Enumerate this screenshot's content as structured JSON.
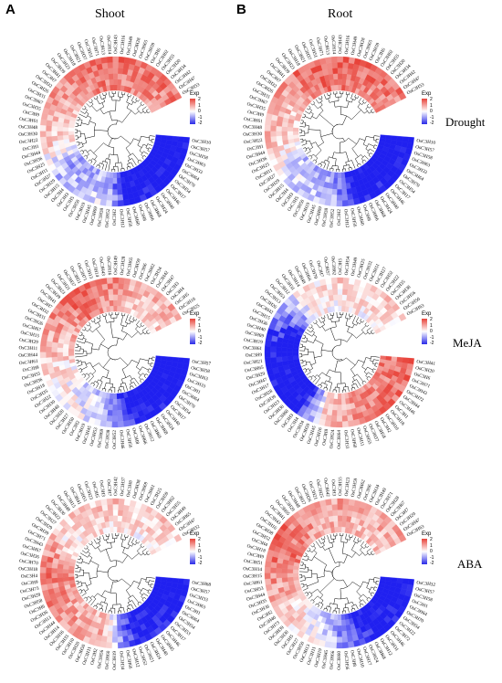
{
  "labels": {
    "panel_a": "A",
    "panel_b": "B",
    "shoot": "Shoot",
    "root": "Root",
    "drought": "Drought",
    "meja": "MeJA",
    "aba": "ABA"
  },
  "legend": {
    "title": "Exp",
    "ticks": [
      "2",
      "1",
      "0",
      "-1",
      "-2"
    ]
  },
  "colors": {
    "high": "#e8433a",
    "mid": "#ffffff",
    "low": "#2020f0"
  },
  "heatmaps": [
    {
      "id": "shoot-drought",
      "genes": [
        "OsC3H10",
        "OsC3H57",
        "OsC3H58",
        "OsC3H63",
        "OsC3H33",
        "OsC3H64",
        "OsC3H70",
        "OsC3H54",
        "OsC3H17",
        "OsC3H46",
        "OsC3H40",
        "OsC3H24",
        "OsC3H68",
        "OsC3H66",
        "OsC3H8",
        "OsC3H60",
        "OsC3H56",
        "OsC3H12",
        "OsC3H2",
        "OsC3H52",
        "OsC3H38",
        "OsC3H69",
        "OsC3H45",
        "OsC3H19",
        "OsC3H50",
        "OsC3H5",
        "OsC3H3",
        "OsC3H4",
        "OsC3H15",
        "OsC3H29",
        "OsC3H27",
        "OsC3H11",
        "OsC3H25",
        "OsC3H36",
        "OsC3H44",
        "OsC3H1",
        "OsC3H22",
        "OsC3H30",
        "OsC3H48",
        "OsC3H61",
        "OsC3H9",
        "OsC3H35",
        "OsC3H67",
        "OsC3H31",
        "OsC3H26",
        "OsC3H32",
        "OsC3H7",
        "OsC3H41",
        "OsC3H39",
        "OsC3H23",
        "OsC3H18",
        "OsC3H21",
        "OsC3H37",
        "OsC3H51",
        "OsC3H71",
        "OsC3H13",
        "OsC3H14",
        "OsC3H43",
        "OsC3H16",
        "OsC3H49",
        "OsC3H28",
        "OsC3H65",
        "OsC3H59",
        "OsC3H6",
        "OsC3H62",
        "OsC3H55",
        "OsC3H20",
        "OsC3H34",
        "OsC3H42",
        "OsC3H47",
        "OsC3H53"
      ],
      "profile": [
        [
          0,
          -2
        ],
        [
          0.22,
          -1.8
        ],
        [
          0.28,
          -0.4
        ],
        [
          0.42,
          -0.6
        ],
        [
          0.5,
          0.3
        ],
        [
          0.6,
          0.6
        ],
        [
          0.75,
          1.2
        ],
        [
          1,
          1.0
        ]
      ]
    },
    {
      "id": "root-drought",
      "genes": [
        "OsC3H10",
        "OsC3H57",
        "OsC3H58",
        "OsC3H63",
        "OsC3H33",
        "OsC3H64",
        "OsC3H70",
        "OsC3H54",
        "OsC3H17",
        "OsC3H46",
        "OsC3H40",
        "OsC3H24",
        "OsC3H68",
        "OsC3H66",
        "OsC3H8",
        "OsC3H60",
        "OsC3H56",
        "OsC3H12",
        "OsC3H2",
        "OsC3H52",
        "OsC3H38",
        "OsC3H69",
        "OsC3H45",
        "OsC3H19",
        "OsC3H50",
        "OsC3H5",
        "OsC3H3",
        "OsC3H4",
        "OsC3H15",
        "OsC3H29",
        "OsC3H27",
        "OsC3H11",
        "OsC3H25",
        "OsC3H36",
        "OsC3H44",
        "OsC3H1",
        "OsC3H22",
        "OsC3H30",
        "OsC3H48",
        "OsC3H61",
        "OsC3H9",
        "OsC3H35",
        "OsC3H67",
        "OsC3H31",
        "OsC3H26",
        "OsC3H32",
        "OsC3H7",
        "OsC3H41",
        "OsC3H39",
        "OsC3H23",
        "OsC3H18",
        "OsC3H21",
        "OsC3H37",
        "OsC3H51",
        "OsC3H71",
        "OsC3H13",
        "OsC3H14",
        "OsC3H43",
        "OsC3H16",
        "OsC3H49",
        "OsC3H28",
        "OsC3H65",
        "OsC3H59",
        "OsC3H6",
        "OsC3H62",
        "OsC3H55",
        "OsC3H20",
        "OsC3H34",
        "OsC3H42",
        "OsC3H47",
        "OsC3H53"
      ],
      "profile": [
        [
          0,
          -2
        ],
        [
          0.22,
          -1.7
        ],
        [
          0.28,
          -0.5
        ],
        [
          0.42,
          -0.3
        ],
        [
          0.5,
          0.4
        ],
        [
          0.6,
          0.5
        ],
        [
          0.75,
          1.3
        ],
        [
          1,
          1.0
        ]
      ]
    },
    {
      "id": "shoot-meja",
      "genes": [
        "OsC3H57",
        "OsC3H58",
        "OsC3H63",
        "OsC3H33",
        "OsC3H1",
        "OsC3H64",
        "OsC3H70",
        "OsC3H54",
        "OsC3H17",
        "OsC3H40",
        "OsC3H24",
        "OsC3H68",
        "OsC3H60",
        "OsC3H12",
        "OsC3H66",
        "OsC3H8",
        "OsC3H56",
        "OsC3H46",
        "OsC3H52",
        "OsC3H38",
        "OsC3H69",
        "OsC3H53",
        "OsC3H45",
        "OsC3H19",
        "OsC3H2",
        "OsC3H50",
        "OsC3H27",
        "OsC3H20",
        "OsC3H48",
        "OsC3H30",
        "OsC3H22",
        "OsC3H35",
        "OsC3H18",
        "OsC3H36",
        "OsC3H55",
        "OsC3H9",
        "OsC3H61",
        "OsC3H44",
        "OsC3H11",
        "OsC3H29",
        "OsC3H15",
        "OsC3H67",
        "OsC3H26",
        "OsC3H31",
        "OsC3H32",
        "OsC3H7",
        "OsC3H41",
        "OsC3H39",
        "OsC3H23",
        "OsC3H21",
        "OsC3H37",
        "OsC3H51",
        "OsC3H71",
        "OsC3H13",
        "OsC3H14",
        "OsC3H43",
        "OsC3H16",
        "OsC3H49",
        "OsC3H28",
        "OsC3H65",
        "OsC3H59",
        "OsC3H6",
        "OsC3H62",
        "OsC3H34",
        "OsC3H42",
        "OsC3H47",
        "OsC3H3",
        "OsC3H4",
        "OsC3H5",
        "OsC3H10",
        "OsC3H25"
      ],
      "profile": [
        [
          0,
          -2
        ],
        [
          0.2,
          -1.8
        ],
        [
          0.3,
          -0.4
        ],
        [
          0.4,
          0.0
        ],
        [
          0.55,
          0.5
        ],
        [
          0.72,
          1.3
        ],
        [
          0.85,
          0.6
        ],
        [
          1,
          0.5
        ]
      ]
    },
    {
      "id": "root-meja",
      "genes": [
        "OsC3H41",
        "OsC3H20",
        "OsC3H6",
        "OsC3H71",
        "OsC3H43",
        "OsC3H72",
        "OsC3H44",
        "OsC3H46",
        "OsC3H1",
        "OsC3H18",
        "OsC3H10",
        "OsC3H2",
        "OsC3H58",
        "OsC3H37",
        "OsC3H55",
        "OsC3H11",
        "OsC3H60",
        "OsC3H33",
        "OsC3H64",
        "OsC3H24",
        "OsC3H8",
        "OsC3H16",
        "OsC3H45",
        "OsC3H59",
        "OsC3H34",
        "OsC3H4",
        "OsC3H3",
        "OsC3H68",
        "OsC3H30",
        "OsC3H23",
        "OsC3H39",
        "OsC3H28",
        "OsC3H17",
        "OsC3H47",
        "OsC3H29",
        "OsC3H65",
        "OsC3H21",
        "OsC3H9",
        "OsC3H61",
        "OsC3H19",
        "OsC3H69",
        "OsC3H40",
        "OsC3H36",
        "OsC3H15",
        "OsC3H42",
        "OsC3H26",
        "OsC3H13",
        "OsC3H53",
        "OsC3H12",
        "OsC3H31",
        "OsC3H14",
        "OsC3H48",
        "OsC3H66",
        "OsC3H70",
        "OsC3H7",
        "OsC3H57",
        "OsC3H62",
        "OsC3H5",
        "OsC3H54",
        "OsC3H49",
        "OsC3H25",
        "OsC3H32",
        "OsC3H51",
        "OsC3H27",
        "OsC3H52",
        "OsC3H22",
        "OsC3H35",
        "OsC3H38",
        "OsC3H56",
        "OsC3H50",
        "OsC3H63"
      ],
      "profile": [
        [
          0,
          1.2
        ],
        [
          0.2,
          1.0
        ],
        [
          0.3,
          0.3
        ],
        [
          0.38,
          -1.9
        ],
        [
          0.55,
          -1.8
        ],
        [
          0.62,
          -1.2
        ],
        [
          0.72,
          0.1
        ],
        [
          0.85,
          0.3
        ],
        [
          1,
          0.2
        ]
      ]
    },
    {
      "id": "shoot-aba",
      "genes": [
        "OsC3H68",
        "OsC3H57",
        "OsC3H33",
        "OsC3H63",
        "OsC3H1",
        "OsC3H64",
        "OsC3H54",
        "OsC3H53",
        "OsC3H17",
        "OsC3H46",
        "OsC3H45",
        "OsC3H40",
        "OsC3H24",
        "OsC3H21",
        "OsC3H52",
        "OsC3H12",
        "OsC3H66",
        "OsC3H34",
        "OsC3H19",
        "OsC3H60",
        "OsC3H56",
        "OsC3H2",
        "OsC3H11",
        "OsC3H50",
        "OsC3H20",
        "OsC3H10",
        "OsC3H35",
        "OsC3H16",
        "OsC3H14",
        "OsC3H44",
        "OsC3H13",
        "OsC3H36",
        "OsC3H6",
        "OsC3H58",
        "OsC3H28",
        "OsC3H73",
        "OsC3H9",
        "OsC3H4",
        "OsC3H18",
        "OsC3H70",
        "OsC3H26",
        "OsC3H67",
        "OsC3H43",
        "OsC3H71",
        "OsC3H39",
        "OsC3H29",
        "OsC3H27",
        "OsC3H22",
        "OsC3H30",
        "OsC3H48",
        "OsC3H15",
        "OsC3H41",
        "OsC3H51",
        "OsC3H23",
        "OsC3H5",
        "OsC3H3",
        "OsC3H7",
        "OsC3H42",
        "OsC3H37",
        "OsC3H8",
        "OsC3H38",
        "OsC3H69",
        "OsC3H61",
        "OsC3H25",
        "OsC3H59",
        "OsC3H62",
        "OsC3H55",
        "OsC3H49",
        "OsC3H65",
        "OsC3H47",
        "OsC3H32"
      ],
      "profile": [
        [
          0,
          -2
        ],
        [
          0.2,
          -1.6
        ],
        [
          0.3,
          0.6
        ],
        [
          0.55,
          1.1
        ],
        [
          0.65,
          0.2
        ],
        [
          0.78,
          0.4
        ],
        [
          0.9,
          0.3
        ],
        [
          1,
          0.2
        ]
      ]
    },
    {
      "id": "root-aba",
      "genes": [
        "OsC3H32",
        "OsC3H57",
        "OsC3H58",
        "OsC3H1",
        "OsC3H64",
        "OsC3H70",
        "OsC3H54",
        "OsC3H22",
        "OsC3H72",
        "OsC3H46",
        "OsC3H31",
        "OsC3H12",
        "OsC3H68",
        "OsC3H24",
        "OsC3H17",
        "OsC3H10",
        "OsC3H8",
        "OsC3H56",
        "OsC3H60",
        "OsC3H66",
        "OsC3H45",
        "OsC3H19",
        "OsC3H11",
        "OsC3H13",
        "OsC3H50",
        "OsC3H27",
        "OsC3H5",
        "OsC3H30",
        "OsC3H39",
        "OsC3H73",
        "OsC3H40",
        "OsC3H2",
        "OsC3H36",
        "OsC3H35",
        "OsC3H44",
        "OsC3H53",
        "OsC3H61",
        "OsC3H15",
        "OsC3H14",
        "OsC3H51",
        "OsC3H9",
        "OsC3H18",
        "OsC3H4",
        "OsC3H52",
        "OsC3H38",
        "OsC3H16",
        "OsC3H43",
        "OsC3H41",
        "OsC3H65",
        "OsC3H29",
        "OsC3H48",
        "OsC3H37",
        "OsC3H26",
        "OsC3H21",
        "OsC3H25",
        "OsC3H42",
        "OsC3H3",
        "OsC3H55",
        "OsC3H23",
        "OsC3H59",
        "OsC3H62",
        "OsC3H6",
        "OsC3H34",
        "OsC3H49",
        "OsC3H71",
        "OsC3H28",
        "OsC3H67",
        "OsC3H7",
        "OsC3H20",
        "OsC3H47",
        "OsC3H63"
      ],
      "profile": [
        [
          0,
          -2
        ],
        [
          0.18,
          -1.7
        ],
        [
          0.3,
          -0.3
        ],
        [
          0.42,
          0.4
        ],
        [
          0.6,
          1.2
        ],
        [
          0.8,
          0.7
        ],
        [
          1,
          0.6
        ]
      ]
    }
  ]
}
